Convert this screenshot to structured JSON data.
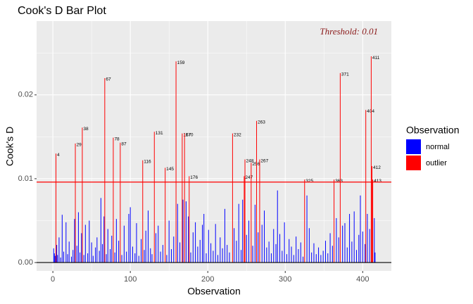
{
  "chart_data": {
    "type": "bar",
    "title": "Cook's D Bar Plot",
    "x_label": "Observation",
    "y_label": "Cook's D",
    "annotation": "Threshold: 0.01",
    "threshold": 0.0096,
    "threshold_color": "#ff0000",
    "legend_title": "Observation",
    "legend": "right",
    "grid": true,
    "xlim": [
      -21,
      437
    ],
    "ylim": [
      -0.001,
      0.0288
    ],
    "xticks": [
      0,
      100,
      200,
      300,
      400
    ],
    "yticks": [
      {
        "value": 0,
        "label": "0.00"
      },
      {
        "value": 0.01,
        "label": "0.01"
      },
      {
        "value": 0.02,
        "label": "0.02"
      }
    ],
    "series": [
      {
        "name": "normal",
        "color": "#0000ff",
        "x": [
          1,
          2,
          3,
          5,
          6,
          8,
          10,
          12,
          14,
          17,
          19,
          21,
          24,
          26,
          28,
          31,
          33,
          35,
          37,
          40,
          42,
          45,
          47,
          50,
          52,
          55,
          57,
          60,
          62,
          64,
          66,
          69,
          71,
          74,
          76,
          80,
          82,
          85,
          89,
          92,
          95,
          98,
          100,
          103,
          106,
          108,
          111,
          114,
          118,
          120,
          123,
          126,
          128,
          133,
          136,
          139,
          142,
          147,
          150,
          153,
          156,
          161,
          164,
          168,
          172,
          175,
          178,
          181,
          184,
          187,
          190,
          193,
          195,
          198,
          201,
          204,
          207,
          210,
          213,
          216,
          219,
          222,
          225,
          228,
          234,
          237,
          240,
          243,
          245,
          250,
          253,
          258,
          261,
          265,
          270,
          273,
          276,
          279,
          282,
          285,
          288,
          290,
          293,
          296,
          299,
          302,
          305,
          308,
          311,
          314,
          317,
          320,
          323,
          328,
          331,
          334,
          337,
          340,
          343,
          346,
          349,
          352,
          355,
          358,
          361,
          366,
          369,
          374,
          377,
          380,
          383,
          386,
          389,
          392,
          395,
          397,
          400,
          403,
          406,
          409,
          415,
          416
        ],
        "values": [
          0.0017,
          0.0011,
          0.0008,
          0.0021,
          0.0009,
          0.003,
          0.0006,
          0.0057,
          0.0013,
          0.0048,
          0.001,
          0.0025,
          0.0007,
          0.0015,
          0.0052,
          0.002,
          0.006,
          0.0012,
          0.0035,
          0.0009,
          0.0045,
          0.0011,
          0.005,
          0.0024,
          0.0008,
          0.0018,
          0.003,
          0.0014,
          0.0077,
          0.0022,
          0.0055,
          0.001,
          0.004,
          0.0016,
          0.0032,
          0.0012,
          0.0052,
          0.0026,
          0.0009,
          0.0044,
          0.0013,
          0.0058,
          0.0066,
          0.0019,
          0.0011,
          0.0047,
          0.0008,
          0.0028,
          0.0015,
          0.0038,
          0.0062,
          0.0017,
          0.001,
          0.0035,
          0.0044,
          0.0013,
          0.0021,
          0.0009,
          0.005,
          0.0016,
          0.0031,
          0.007,
          0.0024,
          0.0075,
          0.0073,
          0.0055,
          0.0012,
          0.0036,
          0.0048,
          0.0019,
          0.0027,
          0.0045,
          0.0058,
          0.0011,
          0.0039,
          0.0023,
          0.0014,
          0.0046,
          0.0009,
          0.003,
          0.0017,
          0.0064,
          0.0021,
          0.0012,
          0.0041,
          0.0026,
          0.007,
          0.0015,
          0.0075,
          0.0033,
          0.005,
          0.002,
          0.0069,
          0.0036,
          0.0045,
          0.0062,
          0.0018,
          0.0025,
          0.0011,
          0.004,
          0.0022,
          0.0086,
          0.0034,
          0.0014,
          0.0048,
          0.001,
          0.0028,
          0.0019,
          0.0009,
          0.0031,
          0.0016,
          0.0024,
          0.0007,
          0.008,
          0.0041,
          0.0012,
          0.0023,
          0.001,
          0.0018,
          0.0009,
          0.0014,
          0.0026,
          0.0011,
          0.0035,
          0.002,
          0.0053,
          0.003,
          0.0044,
          0.0047,
          0.0018,
          0.0058,
          0.0025,
          0.0061,
          0.0015,
          0.0033,
          0.008,
          0.0037,
          0.0022,
          0.0058,
          0.004,
          0.0053,
          0.0012
        ]
      },
      {
        "name": "outlier",
        "color": "#ff0000",
        "x": [
          4,
          29,
          38,
          67,
          78,
          87,
          116,
          131,
          145,
          159,
          167,
          170,
          176,
          232,
          247,
          248,
          256,
          263,
          267,
          325,
          363,
          371,
          404,
          411,
          412,
          413
        ],
        "values": [
          0.013,
          0.0142,
          0.0161,
          0.022,
          0.0149,
          0.0143,
          0.0122,
          0.0156,
          0.0113,
          0.024,
          0.0154,
          0.0154,
          0.0103,
          0.0154,
          0.0103,
          0.0123,
          0.0119,
          0.0169,
          0.0123,
          0.0099,
          0.0099,
          0.0226,
          0.0182,
          0.0246,
          0.0115,
          0.0099
        ]
      }
    ]
  }
}
